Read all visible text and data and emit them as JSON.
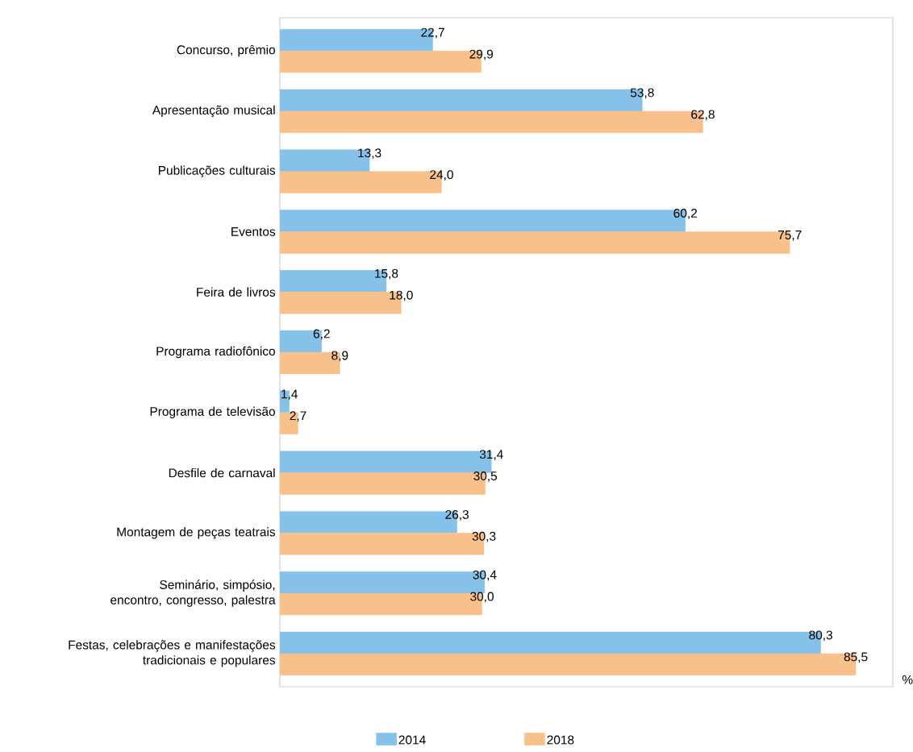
{
  "chart_data": {
    "type": "bar",
    "orientation": "horizontal",
    "xlabel": "%",
    "xlim": [
      0,
      91
    ],
    "legend": "bottom",
    "categories": [
      "Concurso, prêmio",
      "Apresentação musical",
      "Publicações culturais",
      "Eventos",
      "Feira de livros",
      "Programa radiofônico",
      "Programa de televisão",
      "Desfile de carnaval",
      "Montagem de peças teatrais",
      "Seminário, simpósio, encontro, congresso, palestra",
      "Festas, celebrações e manifestações tradicionais e populares"
    ],
    "series": [
      {
        "name": "2014",
        "color": "#85c1e9",
        "values": [
          22.7,
          53.8,
          13.3,
          60.2,
          15.8,
          6.2,
          1.4,
          31.4,
          26.3,
          30.4,
          80.3
        ],
        "value_labels": [
          "22,7",
          "53,8",
          "13,3",
          "60,2",
          "15,8",
          "6,2",
          "1,4",
          "31,4",
          "26,3",
          "30,4",
          "80,3"
        ]
      },
      {
        "name": "2018",
        "color": "#f8c08a",
        "values": [
          29.9,
          62.8,
          24.0,
          75.7,
          18.0,
          8.9,
          2.7,
          30.5,
          30.3,
          30.0,
          85.5
        ],
        "value_labels": [
          "29,9",
          "62,8",
          "24,0",
          "75,7",
          "18,0",
          "8,9",
          "2,7",
          "30,5",
          "30,3",
          "30,0",
          "85,5"
        ]
      }
    ]
  }
}
